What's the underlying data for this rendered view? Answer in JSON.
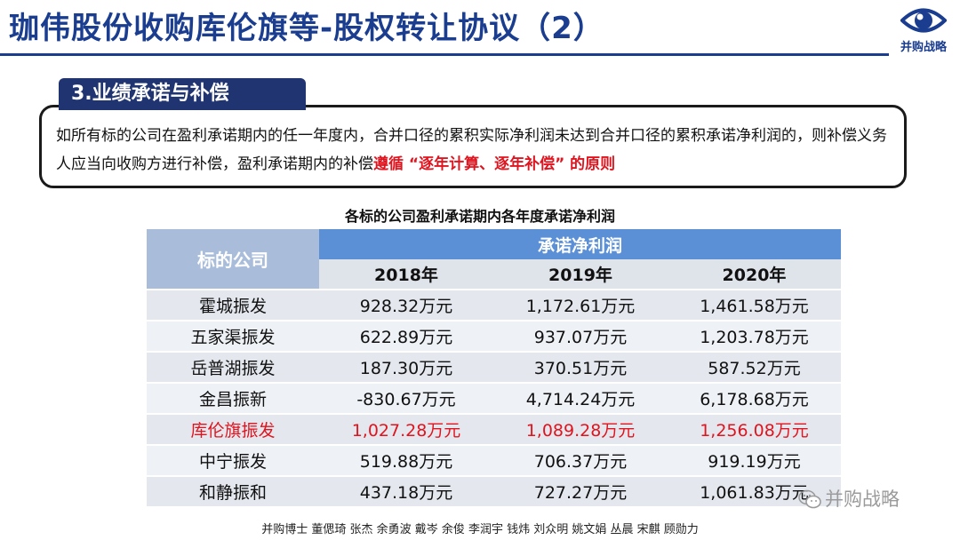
{
  "header": {
    "title": "珈伟股份收购库伦旗等-股权转让协议（2）",
    "logo_text": "并购战略",
    "logo_icon": "eye-icon",
    "accent_color": "#1a3d8f"
  },
  "section": {
    "tag": "3.业绩承诺与补偿",
    "paragraph_part1": "如所有标的公司在盈利承诺期内的任一年度内，合并口径的累积实际净利润未达到合并口径的累积承诺净利润的，则补偿义务人应当向收购方进行补偿，盈利承诺期内的补偿",
    "paragraph_highlight": "遵循 “逐年计算、逐年补偿” 的原则",
    "highlight_color": "#e0141e"
  },
  "table": {
    "caption": "各标的公司盈利承诺期内各年度承诺净利润",
    "col_company": "标的公司",
    "col_group": "承诺净利润",
    "years": [
      "2018年",
      "2019年",
      "2020年"
    ],
    "rows": [
      {
        "company": "霍城振发",
        "v2018": "928.32万元",
        "v2019": "1,172.61万元",
        "v2020": "1,461.58万元"
      },
      {
        "company": "五家渠振发",
        "v2018": "622.89万元",
        "v2019": "937.07万元",
        "v2020": "1,203.78万元"
      },
      {
        "company": "岳普湖振发",
        "v2018": "187.30万元",
        "v2019": "370.51万元",
        "v2020": "587.52万元"
      },
      {
        "company": "金昌振新",
        "v2018": "-830.67万元",
        "v2019": "4,714.24万元",
        "v2020": "6,178.68万元"
      },
      {
        "company": "库伦旗振发",
        "v2018": "1,027.28万元",
        "v2019": "1,089.28万元",
        "v2020": "1,256.08万元"
      },
      {
        "company": "中宁振发",
        "v2018": "519.88万元",
        "v2019": "706.37万元",
        "v2020": "919.19万元"
      },
      {
        "company": "和静振和",
        "v2018": "437.18万元",
        "v2019": "727.27万元",
        "v2020": "1,061.83万元"
      }
    ]
  },
  "footer": {
    "credits": "并购博士 董偲琦 张杰 余勇波 戴岑 余俊 李润宇 钱炜 刘众明 姚文娟 丛晨 宋麒 顾勋力"
  },
  "watermark": {
    "text": "并购战略",
    "icon": "wechat-icon"
  }
}
